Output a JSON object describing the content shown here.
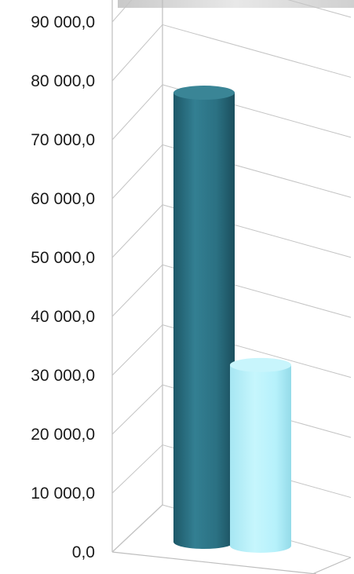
{
  "chart_data": {
    "type": "bar",
    "style": "3d-cylinder",
    "categories": [
      "",
      ""
    ],
    "values": [
      82000,
      33000
    ],
    "colors": [
      "#2b7183",
      "#b6f1fb"
    ],
    "yticks": [
      "0,0",
      "10 000,0",
      "20 000,0",
      "30 000,0",
      "40 000,0",
      "50 000,0",
      "60 000,0",
      "70 000,0",
      "80 000,0",
      "90 000,0"
    ],
    "ylim": [
      0,
      90000
    ],
    "grid": true,
    "legend": false
  }
}
